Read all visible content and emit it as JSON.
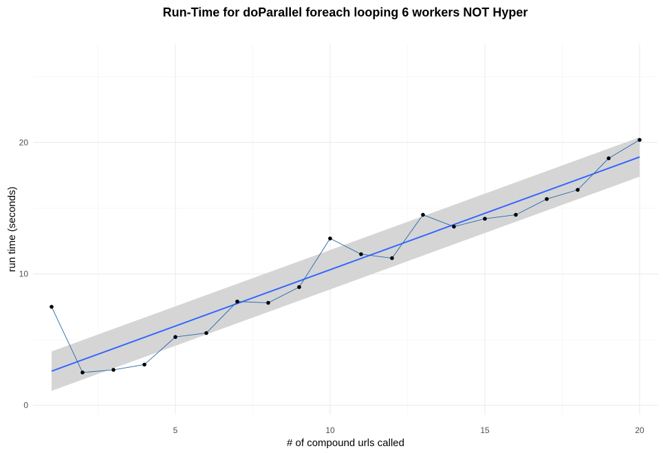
{
  "chart_data": {
    "type": "line",
    "title": "Run-Time for doParallel foreach looping 6 workers NOT Hyper",
    "xlabel": "# of compound urls called",
    "ylabel": "run time (seconds)",
    "xlim": [
      0.4,
      20.6
    ],
    "ylim": [
      -0.7,
      27.5
    ],
    "x_ticks": [
      5,
      10,
      15,
      20
    ],
    "y_ticks": [
      0,
      10,
      20
    ],
    "grid": true,
    "legend": "none",
    "series": [
      {
        "type": "line+points",
        "color": "#2166ac",
        "point_color": "#000000",
        "x": [
          1,
          2,
          3,
          4,
          5,
          6,
          7,
          8,
          9,
          10,
          11,
          12,
          13,
          14,
          15,
          16,
          17,
          18,
          19,
          20
        ],
        "y": [
          7.5,
          2.5,
          2.7,
          3.1,
          5.2,
          5.5,
          7.9,
          7.8,
          9.0,
          12.7,
          11.5,
          11.2,
          14.5,
          13.6,
          14.2,
          14.5,
          15.7,
          16.4,
          18.8,
          20.2
        ]
      }
    ],
    "smooth": {
      "type": "linear fit",
      "color": "#3366ff",
      "band_color": "#d3d3d3",
      "x": [
        1,
        20
      ],
      "y": [
        2.6,
        18.9
      ],
      "lower": [
        1.1,
        17.4
      ],
      "upper": [
        4.1,
        20.4
      ]
    }
  }
}
